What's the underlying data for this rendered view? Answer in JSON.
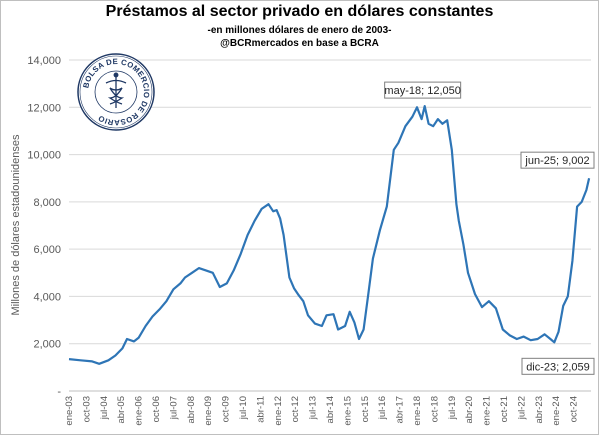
{
  "chart_data": {
    "type": "line",
    "title": "Préstamos al sector privado en dólares constantes",
    "subtitle": "-en millones dólares de enero de 2003-",
    "source": "@BCRmercados en base a BCRA",
    "ylabel": "Millones de dólares estadounidenses",
    "xlabel": "",
    "ylim": [
      0,
      14000
    ],
    "yticks": [
      0,
      2000,
      4000,
      6000,
      8000,
      10000,
      12000,
      14000
    ],
    "ytick_labels": [
      "-",
      "2,000",
      "4,000",
      "6,000",
      "8,000",
      "10,000",
      "12,000",
      "14,000"
    ],
    "grid": true,
    "x_tick_labels": [
      "ene-03",
      "oct-03",
      "jul-04",
      "abr-05",
      "ene-06",
      "oct-06",
      "jul-07",
      "abr-08",
      "ene-09",
      "oct-09",
      "jul-10",
      "abr-11",
      "ene-12",
      "oct-12",
      "jul-13",
      "abr-14",
      "ene-15",
      "oct-15",
      "jul-16",
      "abr-17",
      "ene-18",
      "oct-18",
      "jul-19",
      "abr-20",
      "ene-21",
      "oct-21",
      "jul-22",
      "abr-23",
      "ene-24",
      "oct-24"
    ],
    "series": [
      {
        "name": "",
        "color": "#2e75b6",
        "x": [
          2003.0,
          2003.5,
          2004.0,
          2004.3,
          2004.7,
          2005.0,
          2005.3,
          2005.5,
          2005.8,
          2006.0,
          2006.3,
          2006.6,
          2006.9,
          2007.2,
          2007.5,
          2007.8,
          2008.0,
          2008.3,
          2008.6,
          2008.9,
          2009.2,
          2009.5,
          2009.8,
          2010.1,
          2010.4,
          2010.7,
          2011.0,
          2011.3,
          2011.6,
          2011.8,
          2011.95,
          2012.1,
          2012.25,
          2012.5,
          2012.7,
          2012.9,
          2013.1,
          2013.3,
          2013.6,
          2013.9,
          2014.1,
          2014.4,
          2014.6,
          2014.9,
          2015.1,
          2015.3,
          2015.5,
          2015.7,
          2015.9,
          2016.1,
          2016.4,
          2016.7,
          2017.0,
          2017.2,
          2017.5,
          2017.8,
          2018.0,
          2018.2,
          2018.33,
          2018.5,
          2018.7,
          2018.9,
          2019.1,
          2019.3,
          2019.5,
          2019.7,
          2019.8,
          2020.0,
          2020.2,
          2020.5,
          2020.8,
          2021.1,
          2021.4,
          2021.7,
          2022.0,
          2022.3,
          2022.6,
          2022.9,
          2023.2,
          2023.5,
          2023.75,
          2023.92,
          2024.1,
          2024.3,
          2024.5,
          2024.7,
          2024.9,
          2025.1,
          2025.3,
          2025.42
        ],
        "values": [
          1350,
          1300,
          1250,
          1150,
          1300,
          1500,
          1800,
          2200,
          2100,
          2250,
          2750,
          3150,
          3450,
          3800,
          4300,
          4550,
          4800,
          5000,
          5200,
          5100,
          5000,
          4400,
          4550,
          5100,
          5800,
          6600,
          7200,
          7700,
          7900,
          7600,
          7650,
          7300,
          6600,
          4800,
          4350,
          4050,
          3800,
          3200,
          2850,
          2750,
          3200,
          3250,
          2600,
          2750,
          3350,
          2900,
          2200,
          2600,
          4100,
          5600,
          6800,
          7800,
          10200,
          10500,
          11200,
          11600,
          12000,
          11500,
          12050,
          11300,
          11200,
          11500,
          11300,
          11450,
          10200,
          7900,
          7200,
          6200,
          5000,
          4100,
          3550,
          3800,
          3500,
          2600,
          2350,
          2200,
          2300,
          2150,
          2200,
          2400,
          2200,
          2059,
          2500,
          3600,
          4000,
          5500,
          7800,
          8000,
          8500,
          9002
        ]
      }
    ],
    "annotations": [
      {
        "label": "may-18; 12,050",
        "x": 2018.33,
        "y": 12050
      },
      {
        "label": "jun-25; 9,002",
        "x": 2025.42,
        "y": 9002
      },
      {
        "label": "dic-23; 2,059",
        "x": 2023.92,
        "y": 2059
      }
    ]
  },
  "logo": {
    "text": "BOLSA DE COMERCIO DE ROSARIO",
    "icon": "caduceus-seal-icon"
  }
}
